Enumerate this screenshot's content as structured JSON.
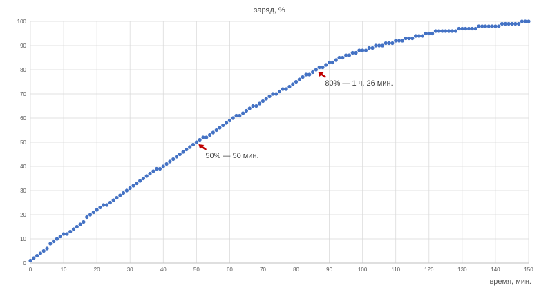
{
  "chart_data": {
    "type": "scatter",
    "title": "заряд, %",
    "xlabel": "время, мин.",
    "ylabel": "",
    "xlim": [
      0,
      150
    ],
    "ylim": [
      0,
      100
    ],
    "x_ticks": [
      0,
      10,
      20,
      30,
      40,
      50,
      60,
      70,
      80,
      90,
      100,
      110,
      120,
      130,
      140,
      150
    ],
    "y_ticks": [
      0,
      10,
      20,
      30,
      40,
      50,
      60,
      70,
      80,
      90,
      100
    ],
    "grid": true,
    "legend": "none",
    "marker_color": "#4472c4",
    "arrow_color": "#c00000",
    "x": [
      0,
      1,
      2,
      3,
      4,
      5,
      6,
      7,
      8,
      9,
      10,
      11,
      12,
      13,
      14,
      15,
      16,
      17,
      18,
      19,
      20,
      21,
      22,
      23,
      24,
      25,
      26,
      27,
      28,
      29,
      30,
      31,
      32,
      33,
      34,
      35,
      36,
      37,
      38,
      39,
      40,
      41,
      42,
      43,
      44,
      45,
      46,
      47,
      48,
      49,
      50,
      51,
      52,
      53,
      54,
      55,
      56,
      57,
      58,
      59,
      60,
      61,
      62,
      63,
      64,
      65,
      66,
      67,
      68,
      69,
      70,
      71,
      72,
      73,
      74,
      75,
      76,
      77,
      78,
      79,
      80,
      81,
      82,
      83,
      84,
      85,
      86,
      87,
      88,
      89,
      90,
      91,
      92,
      93,
      94,
      95,
      96,
      97,
      98,
      99,
      100,
      101,
      102,
      103,
      104,
      105,
      106,
      107,
      108,
      109,
      110,
      111,
      112,
      113,
      114,
      115,
      116,
      117,
      118,
      119,
      120,
      121,
      122,
      123,
      124,
      125,
      126,
      127,
      128,
      129,
      130,
      131,
      132,
      133,
      134,
      135,
      136,
      137,
      138,
      139,
      140,
      141,
      142,
      143,
      144,
      145,
      146,
      147,
      148,
      149,
      150
    ],
    "y": [
      1,
      2,
      3,
      4,
      5,
      6,
      8,
      9,
      10,
      11,
      12,
      12,
      13,
      14,
      15,
      16,
      17,
      19,
      20,
      21,
      22,
      23,
      24,
      24,
      25,
      26,
      27,
      28,
      29,
      30,
      31,
      32,
      33,
      34,
      35,
      36,
      37,
      38,
      39,
      39,
      40,
      41,
      42,
      43,
      44,
      45,
      46,
      47,
      48,
      49,
      50,
      51,
      52,
      52,
      53,
      54,
      55,
      56,
      57,
      58,
      59,
      60,
      61,
      61,
      62,
      63,
      64,
      65,
      65,
      66,
      67,
      68,
      69,
      70,
      70,
      71,
      72,
      72,
      73,
      74,
      75,
      76,
      77,
      78,
      78,
      79,
      80,
      81,
      81,
      82,
      83,
      83,
      84,
      85,
      85,
      86,
      86,
      87,
      87,
      88,
      88,
      88,
      89,
      89,
      90,
      90,
      90,
      91,
      91,
      91,
      92,
      92,
      92,
      93,
      93,
      93,
      94,
      94,
      94,
      95,
      95,
      95,
      96,
      96,
      96,
      96,
      96,
      96,
      96,
      97,
      97,
      97,
      97,
      97,
      97,
      98,
      98,
      98,
      98,
      98,
      98,
      98,
      99,
      99,
      99,
      99,
      99,
      99,
      100,
      100,
      100
    ],
    "annotations": [
      {
        "text": "50% — 50 мин.",
        "x": 50,
        "y": 50
      },
      {
        "text": "80% — 1 ч. 26 мин.",
        "x": 86,
        "y": 80
      }
    ]
  }
}
